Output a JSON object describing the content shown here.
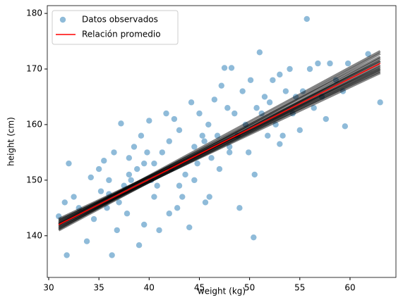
{
  "chart_data": {
    "type": "scatter",
    "xlabel": "weight (kg)",
    "ylabel": "height (cm)",
    "xlim": [
      29.86,
      64.57
    ],
    "ylim": [
      132.5,
      181.4
    ],
    "xticks": [
      30,
      35,
      40,
      45,
      50,
      55,
      60
    ],
    "yticks": [
      140,
      150,
      160,
      170,
      180
    ],
    "legend": "upper-left",
    "series": [
      {
        "name": "Datos observados",
        "type": "scatter",
        "color": "#1f77b4",
        "alpha": 0.5,
        "x": [
          31.0,
          31.8,
          31.6,
          32.0,
          32.5,
          33.0,
          33.8,
          34.2,
          34.5,
          35.0,
          35.2,
          35.5,
          35.8,
          36.0,
          36.3,
          36.5,
          36.8,
          37.0,
          37.2,
          37.5,
          37.8,
          38.0,
          38.2,
          38.5,
          38.8,
          39.0,
          39.2,
          39.5,
          39.8,
          40.0,
          40.2,
          40.5,
          40.8,
          41.0,
          41.3,
          41.7,
          42.0,
          42.2,
          42.5,
          42.8,
          43.0,
          43.3,
          43.6,
          44.0,
          44.2,
          44.5,
          44.8,
          45.0,
          45.3,
          45.6,
          45.9,
          46.2,
          46.5,
          46.8,
          47.0,
          47.2,
          47.5,
          47.8,
          48.0,
          48.2,
          48.5,
          48.8,
          49.0,
          49.3,
          49.6,
          49.9,
          50.1,
          50.4,
          50.7,
          51.0,
          51.2,
          51.5,
          51.8,
          52.0,
          52.3,
          52.6,
          53.0,
          53.3,
          53.6,
          54.0,
          54.3,
          54.6,
          55.0,
          55.3,
          55.7,
          56.0,
          56.4,
          56.8,
          57.2,
          57.6,
          58.0,
          58.6,
          59.3,
          59.5,
          59.8,
          61.8,
          63.0,
          36.0,
          38.0,
          40.5,
          43.0,
          45.5,
          48.0,
          50.5,
          53.0,
          46.0,
          42.0,
          39.5,
          44.5
        ],
        "values": [
          143.5,
          136.5,
          146,
          153,
          147,
          145,
          139,
          150.5,
          143,
          152,
          148,
          153.5,
          145,
          150,
          136.5,
          155,
          141,
          146,
          160.2,
          149,
          144,
          154,
          150,
          156,
          152,
          138.3,
          158,
          153,
          155,
          160.7,
          150,
          147,
          149,
          141,
          155,
          162,
          157,
          152,
          161,
          145,
          159,
          147,
          151,
          141.5,
          164,
          156,
          153,
          162,
          158,
          146,
          160,
          154,
          164.5,
          158,
          152,
          167,
          170.2,
          163,
          156,
          170.2,
          162,
          158,
          145,
          166,
          160,
          155,
          168,
          139.7,
          163,
          173,
          162,
          165,
          158,
          164,
          168,
          160,
          169,
          158,
          166,
          170,
          162,
          165,
          159,
          166,
          179,
          170,
          163,
          171,
          165,
          161,
          171,
          168,
          166,
          159.7,
          171,
          172.7,
          164,
          147.5,
          151,
          153,
          149,
          157,
          155,
          151,
          156.5,
          147,
          144,
          142,
          150
        ]
      },
      {
        "name": "Relación promedio",
        "type": "line",
        "color": "#ff0000",
        "x": [
          31,
          63
        ],
        "values": [
          142,
          171
        ]
      }
    ],
    "samples": {
      "color": "#000000",
      "alpha": 0.12,
      "lines": [
        {
          "x": [
            31,
            63
          ],
          "values": [
            141.2,
            172.8
          ]
        },
        {
          "x": [
            31,
            63
          ],
          "values": [
            142.8,
            169.6
          ]
        },
        {
          "x": [
            31,
            63
          ],
          "values": [
            141.6,
            171.5
          ]
        },
        {
          "x": [
            31,
            63
          ],
          "values": [
            142.4,
            170.4
          ]
        },
        {
          "x": [
            31,
            63
          ],
          "values": [
            141.0,
            171.9
          ]
        },
        {
          "x": [
            31,
            63
          ],
          "values": [
            143.0,
            170.1
          ]
        },
        {
          "x": [
            31,
            63
          ],
          "values": [
            142.2,
            172.2
          ]
        },
        {
          "x": [
            31,
            63
          ],
          "values": [
            141.8,
            169.9
          ]
        },
        {
          "x": [
            31,
            63
          ],
          "values": [
            142.6,
            171.3
          ]
        },
        {
          "x": [
            31,
            63
          ],
          "values": [
            141.4,
            170.7
          ]
        },
        {
          "x": [
            31,
            63
          ],
          "values": [
            142.0,
            173.2
          ]
        },
        {
          "x": [
            31,
            63
          ],
          "values": [
            142.1,
            169.3
          ]
        }
      ]
    }
  }
}
